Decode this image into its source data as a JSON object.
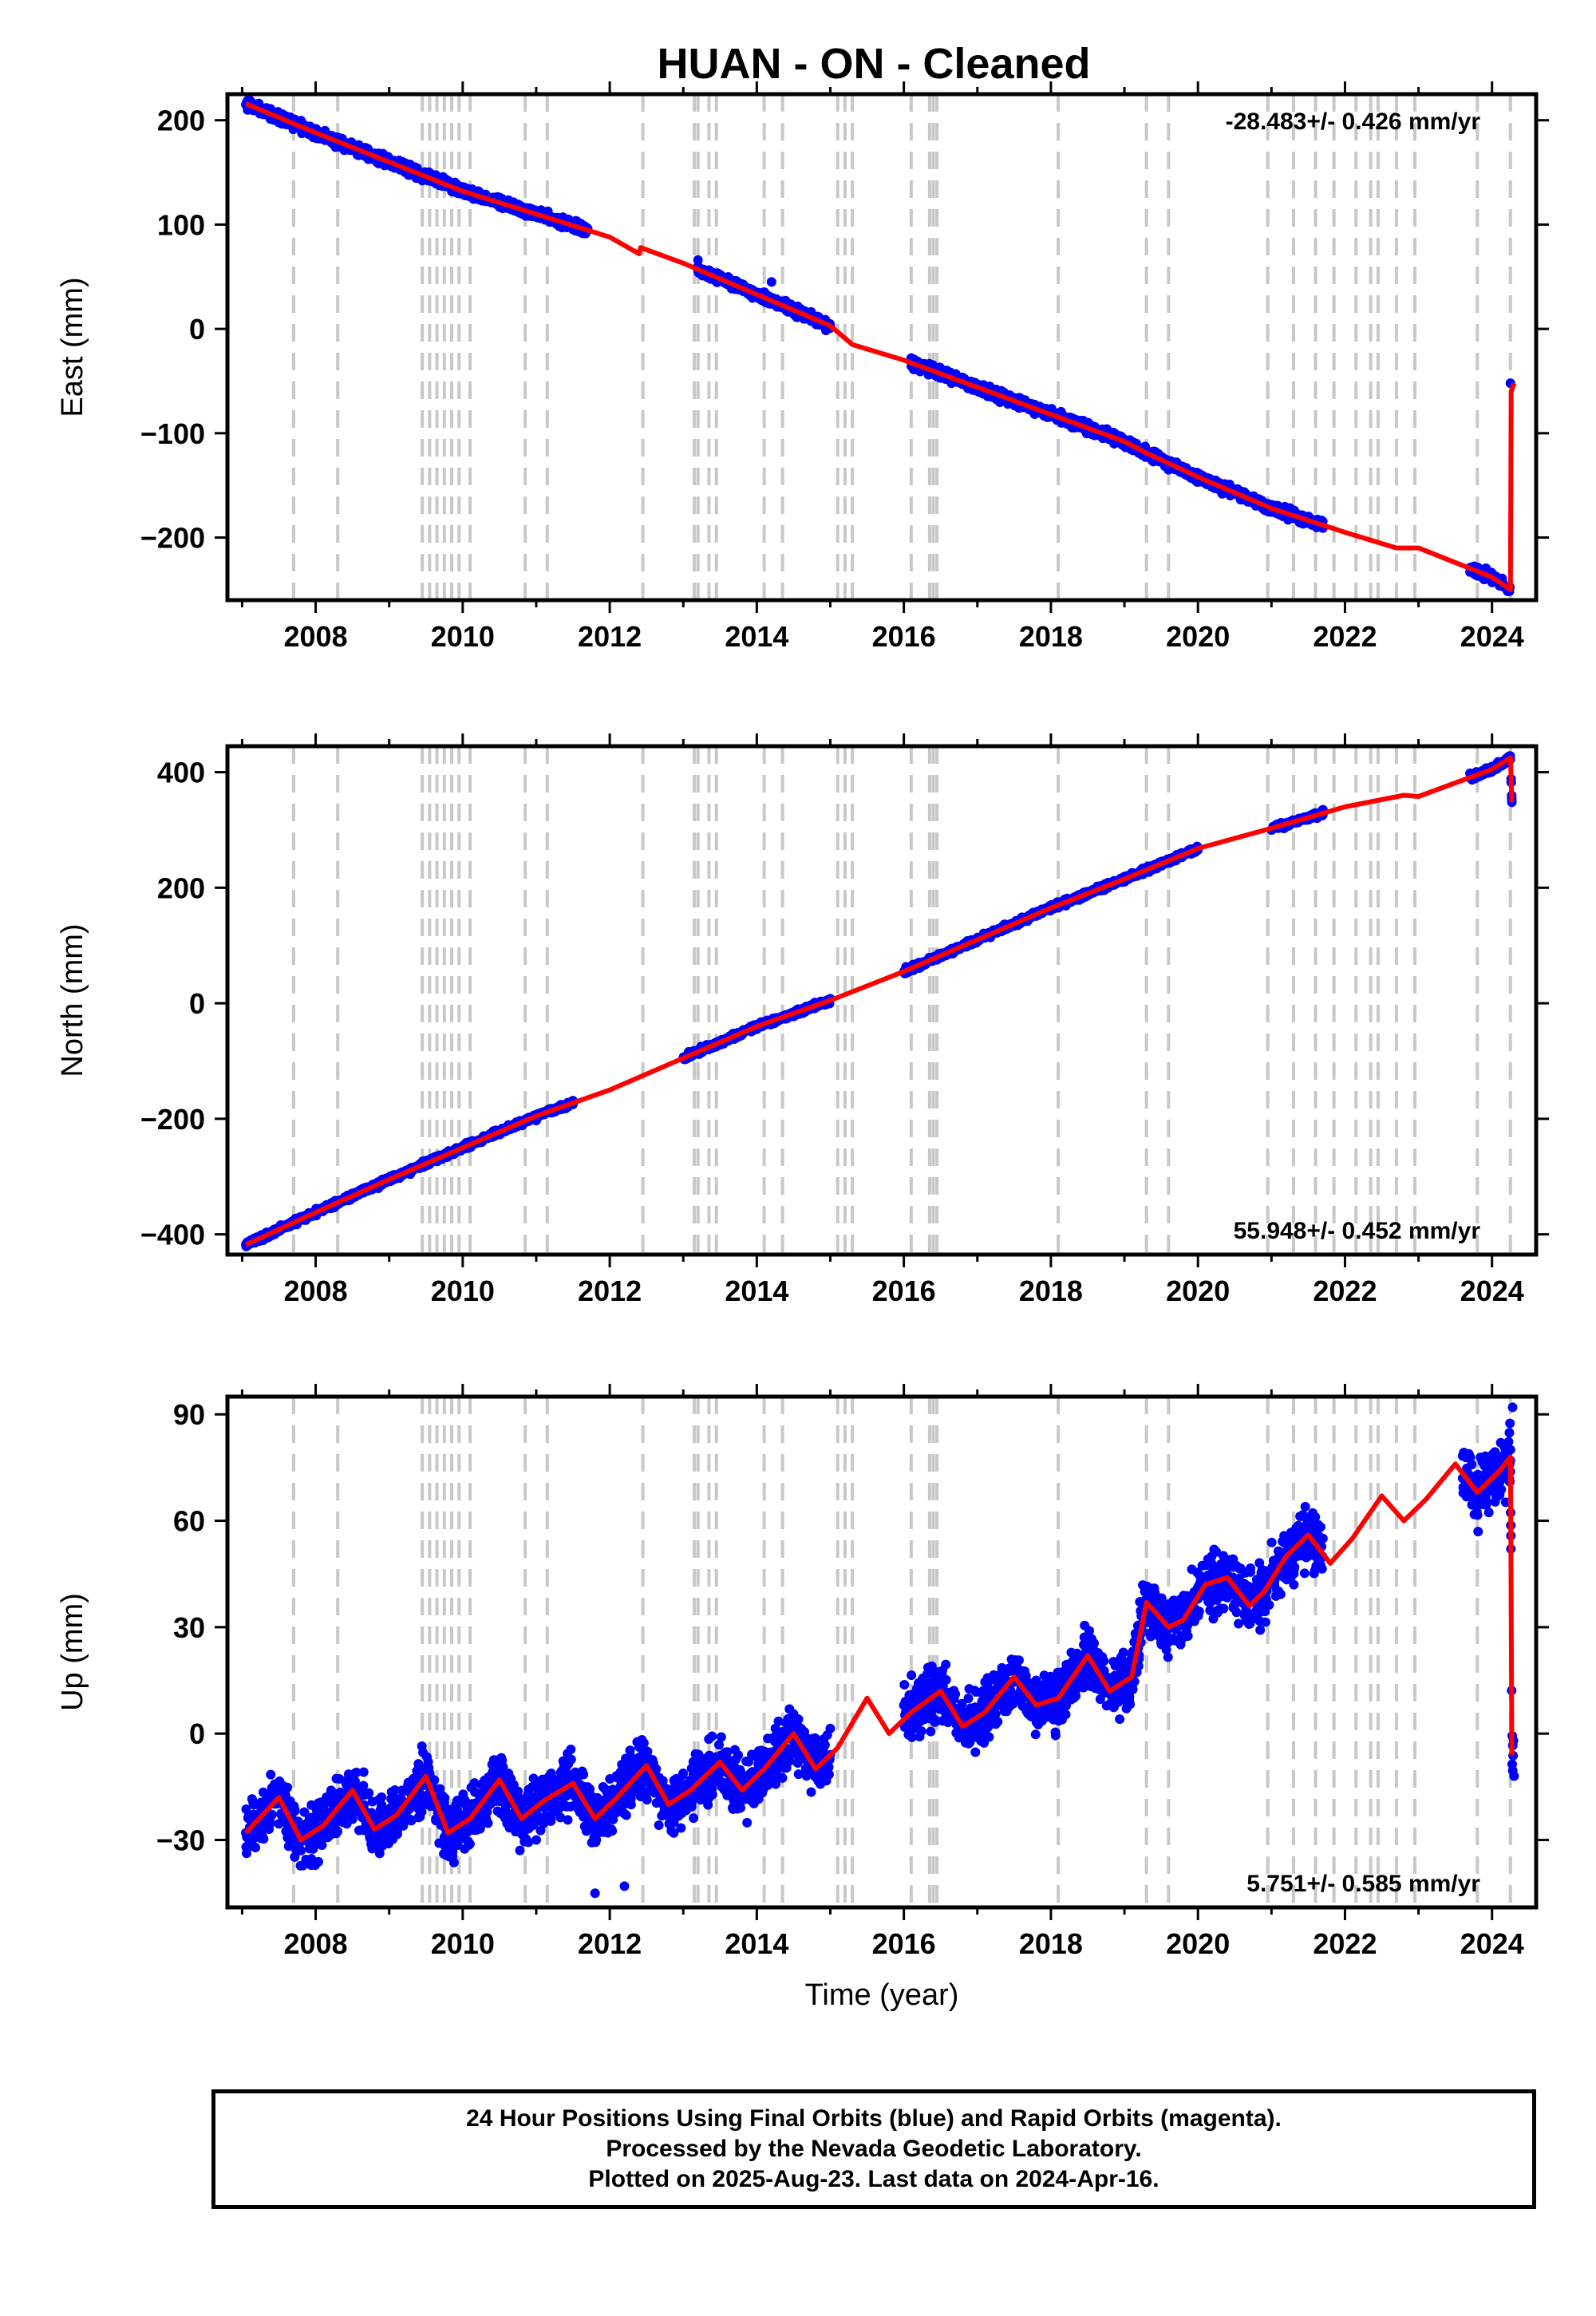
{
  "title": "HUAN  - ON - Cleaned",
  "footer": {
    "line1": "24 Hour Positions Using Final Orbits (blue) and Rapid Orbits (magenta).",
    "line2": "Processed by the Nevada Geodetic Laboratory.",
    "line3": "Plotted on 2025-Aug-23. Last data on 2024-Apr-16."
  },
  "colors": {
    "observations": "#0000ff",
    "model_fit": "#ff0000",
    "breaks": "#c8c8c8"
  },
  "chart_data": [
    {
      "type": "scatter",
      "ylabel": "East (mm)",
      "xlabel": "",
      "rate_label": "-28.483+/- 0.426 mm/yr",
      "rate_position": "top-right",
      "xlim": [
        2006.8,
        2024.6
      ],
      "ylim": [
        -260,
        225
      ],
      "x_ticks": [
        2008,
        2010,
        2012,
        2014,
        2016,
        2018,
        2020,
        2022,
        2024
      ],
      "y_ticks": [
        -200,
        -100,
        0,
        100,
        200
      ],
      "series": [
        {
          "role": "daily positions",
          "color": "#0000ff",
          "x": [
            2007.05,
            2007.3,
            2007.6,
            2008.0,
            2008.5,
            2009.0,
            2009.5,
            2010.0,
            2010.5,
            2011.0,
            2011.3,
            2011.7,
            2013.2,
            2013.5,
            2014.0,
            2014.2,
            2014.6,
            2015.0,
            2016.1,
            2016.5,
            2017.0,
            2017.5,
            2018.0,
            2018.4,
            2018.8,
            2019.3,
            2019.6,
            2020.0,
            2020.5,
            2021.0,
            2021.5,
            2021.7,
            2023.7,
            2024.0,
            2024.25
          ],
          "y": [
            215,
            208,
            199,
            190,
            176,
            163,
            148,
            133,
            126,
            112,
            105,
            96,
            66,
            52,
            32,
            45,
            19,
            3,
            -28,
            -42,
            -53,
            -66,
            -78,
            -88,
            -101,
            -117,
            -135,
            -145,
            -157,
            -172,
            -186,
            -191,
            -233,
            -243,
            -52
          ]
        },
        {
          "role": "model fit",
          "color": "#ff0000",
          "x": [
            2007.05,
            2008.0,
            2009.0,
            2010.0,
            2011.0,
            2012.0,
            2012.4,
            2012.42,
            2013.0,
            2014.0,
            2015.0,
            2015.3,
            2016.0,
            2017.0,
            2018.0,
            2019.0,
            2019.3,
            2020.0,
            2021.0,
            2022.0,
            2022.7,
            2023.0,
            2024.0,
            2024.25,
            2024.26,
            2024.3
          ],
          "y": [
            216,
            188,
            160,
            132,
            110,
            88,
            72,
            78,
            63,
            33,
            3,
            -15,
            -30,
            -56,
            -82,
            -108,
            -119,
            -142,
            -172,
            -195,
            -210,
            -210,
            -238,
            -250,
            -60,
            -52
          ]
        }
      ],
      "breaks_years": [
        2007.7,
        2008.3,
        2009.45,
        2009.55,
        2009.65,
        2009.75,
        2009.85,
        2009.95,
        2010.1,
        2010.85,
        2011.15,
        2012.45,
        2013.15,
        2013.2,
        2013.35,
        2013.45,
        2014.1,
        2014.35,
        2015.1,
        2015.2,
        2015.3,
        2016.1,
        2016.35,
        2016.4,
        2016.45,
        2018.1,
        2019.3,
        2019.6,
        2020.95,
        2021.3,
        2021.6,
        2021.85,
        2022.15,
        2022.35,
        2022.45,
        2022.7,
        2022.95,
        2023.8,
        2024.25
      ]
    },
    {
      "type": "scatter",
      "ylabel": "North (mm)",
      "xlabel": "",
      "rate_label": "55.948+/- 0.452 mm/yr",
      "rate_position": "bottom-right",
      "xlim": [
        2006.8,
        2024.6
      ],
      "ylim": [
        -435,
        445
      ],
      "x_ticks": [
        2008,
        2010,
        2012,
        2014,
        2016,
        2018,
        2020,
        2022,
        2024
      ],
      "y_ticks": [
        -400,
        -200,
        0,
        200,
        400
      ],
      "series": [
        {
          "role": "daily positions",
          "color": "#0000ff",
          "x": [
            2007.05,
            2007.5,
            2008.0,
            2008.5,
            2009.0,
            2009.5,
            2010.0,
            2010.5,
            2011.0,
            2011.5,
            2013.0,
            2013.5,
            2014.0,
            2014.5,
            2015.0,
            2016.0,
            2016.5,
            2017.0,
            2017.5,
            2018.0,
            2018.5,
            2019.0,
            2019.5,
            2020.0,
            2021.0,
            2021.5,
            2021.7,
            2023.7,
            2024.0,
            2024.2,
            2024.27
          ],
          "y": [
            -418,
            -390,
            -362,
            -332,
            -305,
            -277,
            -250,
            -222,
            -203,
            -175,
            -95,
            -72,
            -45,
            -17,
            8,
            55,
            82,
            110,
            137,
            162,
            190,
            217,
            245,
            268,
            300,
            320,
            335,
            398,
            410,
            418,
            348
          ]
        },
        {
          "role": "model fit",
          "color": "#ff0000",
          "x": [
            2007.05,
            2008.0,
            2009.0,
            2010.0,
            2011.0,
            2012.0,
            2013.0,
            2014.0,
            2015.0,
            2016.0,
            2017.0,
            2018.0,
            2019.0,
            2020.0,
            2021.0,
            2022.0,
            2022.8,
            2023.0,
            2024.0,
            2024.25,
            2024.27
          ],
          "y": [
            -418,
            -362,
            -305,
            -250,
            -195,
            -150,
            -95,
            -40,
            5,
            55,
            110,
            165,
            215,
            268,
            303,
            340,
            360,
            358,
            405,
            425,
            348
          ]
        }
      ],
      "breaks_years": [
        2007.7,
        2008.3,
        2009.45,
        2009.55,
        2009.65,
        2009.75,
        2009.85,
        2009.95,
        2010.1,
        2010.85,
        2011.15,
        2012.45,
        2013.15,
        2013.2,
        2013.35,
        2013.45,
        2014.1,
        2014.35,
        2015.1,
        2015.2,
        2015.3,
        2016.1,
        2016.35,
        2016.4,
        2016.45,
        2018.1,
        2019.3,
        2019.6,
        2020.95,
        2021.3,
        2021.6,
        2021.85,
        2022.15,
        2022.35,
        2022.45,
        2022.7,
        2022.95,
        2023.8,
        2024.25
      ]
    },
    {
      "type": "scatter",
      "ylabel": "Up (mm)",
      "xlabel": "Time (year)",
      "rate_label": "5.751+/- 0.585 mm/yr",
      "rate_position": "bottom-right",
      "xlim": [
        2006.8,
        2024.6
      ],
      "ylim": [
        -49,
        95
      ],
      "x_ticks": [
        2008,
        2010,
        2012,
        2014,
        2016,
        2018,
        2020,
        2022,
        2024
      ],
      "y_ticks": [
        -30,
        0,
        30,
        60,
        90
      ],
      "series": [
        {
          "role": "daily positions",
          "color": "#0000ff",
          "x": [
            2007.05,
            2007.3,
            2007.5,
            2007.8,
            2008.1,
            2008.5,
            2008.9,
            2009.2,
            2009.5,
            2009.8,
            2010.0,
            2010.4,
            2010.7,
            2011.0,
            2011.3,
            2011.6,
            2011.8,
            2012.2,
            2012.9,
            2013.1,
            2013.5,
            2014.1,
            2014.4,
            2014.7,
            2015.0,
            2016.0,
            2016.3,
            2016.6,
            2016.9,
            2017.5,
            2017.8,
            2018.2,
            2018.5,
            2018.8,
            2019.1,
            2019.4,
            2019.7,
            2020.0,
            2020.4,
            2020.7,
            2021.0,
            2021.3,
            2021.6,
            2021.7,
            2023.6,
            2023.9,
            2024.1,
            2024.25,
            2024.28,
            2024.3
          ],
          "y": [
            -28,
            -20,
            -14,
            -33,
            -28,
            -18,
            -25,
            -22,
            -12,
            -30,
            -24,
            -14,
            -26,
            -30,
            -15,
            -17,
            -45,
            -43,
            -22,
            -15,
            -10,
            -5,
            3,
            -10,
            -6,
            8,
            12,
            4,
            6,
            10,
            15,
            17,
            22,
            14,
            18,
            33,
            36,
            38,
            42,
            46,
            44,
            50,
            54,
            55,
            72,
            68,
            75,
            80,
            92,
            -12
          ]
        },
        {
          "role": "model fit",
          "color": "#ff0000",
          "x": [
            2007.05,
            2007.5,
            2007.8,
            2008.1,
            2008.5,
            2008.8,
            2009.1,
            2009.5,
            2009.8,
            2010.1,
            2010.5,
            2010.8,
            2011.1,
            2011.5,
            2011.8,
            2012.1,
            2012.5,
            2012.8,
            2013.1,
            2013.5,
            2013.8,
            2014.1,
            2014.5,
            2014.8,
            2015.1,
            2015.5,
            2015.8,
            2016.1,
            2016.5,
            2016.8,
            2017.1,
            2017.5,
            2017.8,
            2018.1,
            2018.5,
            2018.8,
            2019.1,
            2019.3,
            2019.6,
            2019.8,
            2020.1,
            2020.4,
            2020.7,
            2020.9,
            2021.2,
            2021.5,
            2021.8,
            2022.1,
            2022.5,
            2022.8,
            2023.1,
            2023.5,
            2023.8,
            2024.1,
            2024.25,
            2024.27
          ],
          "y": [
            -28,
            -18,
            -30,
            -26,
            -16,
            -27,
            -23,
            -12,
            -28,
            -24,
            -13,
            -24,
            -19,
            -14,
            -24,
            -18,
            -9,
            -20,
            -16,
            -8,
            -16,
            -10,
            0,
            -10,
            -4,
            10,
            0,
            6,
            12,
            2,
            6,
            16,
            8,
            10,
            22,
            12,
            16,
            37,
            30,
            32,
            42,
            44,
            36,
            40,
            50,
            56,
            48,
            55,
            67,
            60,
            66,
            76,
            68,
            74,
            78,
            -6
          ]
        }
      ],
      "breaks_years": [
        2007.7,
        2008.3,
        2009.45,
        2009.55,
        2009.65,
        2009.75,
        2009.85,
        2009.95,
        2010.1,
        2010.85,
        2011.15,
        2012.45,
        2013.15,
        2013.2,
        2013.35,
        2013.45,
        2014.1,
        2014.35,
        2015.1,
        2015.2,
        2015.3,
        2016.1,
        2016.35,
        2016.4,
        2016.45,
        2018.1,
        2019.3,
        2019.6,
        2020.95,
        2021.3,
        2021.6,
        2021.85,
        2022.15,
        2022.35,
        2022.45,
        2022.7,
        2022.95,
        2023.8,
        2024.25
      ]
    }
  ]
}
